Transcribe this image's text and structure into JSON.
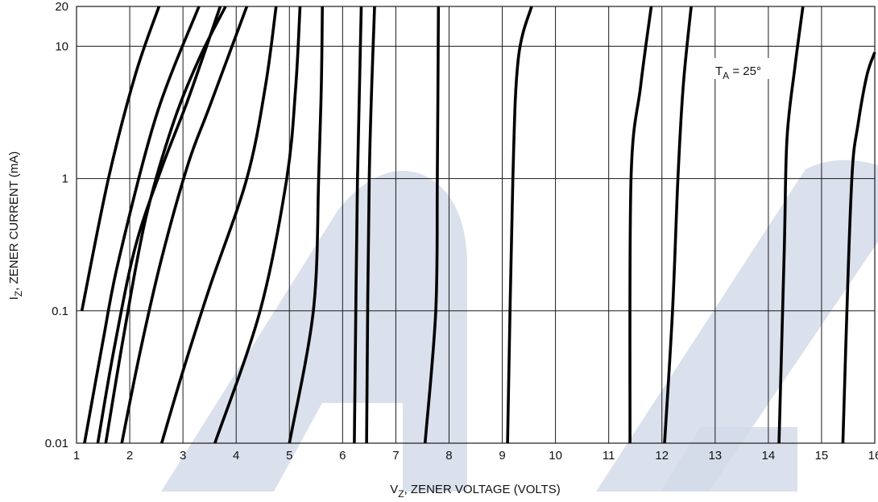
{
  "chart_data": {
    "type": "line",
    "xlabel": {
      "prefix": "V",
      "sub": "Z",
      "rest": ", ZENER VOLTAGE (VOLTS)"
    },
    "ylabel": {
      "prefix": "I",
      "sub": "Z",
      "rest": ", ZENER CURRENT (mA)"
    },
    "annotation": {
      "prefix": "T",
      "sub": "A",
      "rest": " = 25°"
    },
    "xlim": [
      1,
      16
    ],
    "ylim": [
      0.01,
      20
    ],
    "yscale": "log",
    "grid": true,
    "x_ticks": [
      "1",
      "2",
      "3",
      "4",
      "5",
      "6",
      "7",
      "8",
      "9",
      "10",
      "11",
      "12",
      "13",
      "14",
      "15",
      "16"
    ],
    "y_ticks": [
      {
        "value": 0.01,
        "label": "0.01"
      },
      {
        "value": 0.1,
        "label": "0.1"
      },
      {
        "value": 1,
        "label": "1"
      },
      {
        "value": 10,
        "label": "10"
      },
      {
        "value": 20,
        "label": "20"
      }
    ],
    "series": [
      {
        "points": [
          [
            1.1,
            0.1
          ],
          [
            1.6,
            1
          ],
          [
            2.1,
            6
          ],
          [
            2.55,
            20
          ]
        ]
      },
      {
        "points": [
          [
            1.15,
            0.01
          ],
          [
            1.5,
            0.06
          ],
          [
            1.8,
            0.25
          ],
          [
            2.5,
            3
          ],
          [
            3.3,
            20
          ]
        ]
      },
      {
        "points": [
          [
            1.4,
            0.01
          ],
          [
            1.7,
            0.05
          ],
          [
            2.1,
            0.3
          ],
          [
            2.6,
            1.2
          ],
          [
            3.1,
            4
          ],
          [
            3.7,
            20
          ]
        ]
      },
      {
        "points": [
          [
            1.55,
            0.01
          ],
          [
            1.9,
            0.07
          ],
          [
            2.3,
            0.5
          ],
          [
            2.8,
            2.5
          ],
          [
            3.3,
            8
          ],
          [
            3.8,
            20
          ]
        ]
      },
      {
        "points": [
          [
            1.85,
            0.01
          ],
          [
            2.2,
            0.05
          ],
          [
            2.6,
            0.25
          ],
          [
            3.1,
            1.3
          ],
          [
            3.5,
            3.5
          ],
          [
            4.2,
            20
          ]
        ]
      },
      {
        "points": [
          [
            2.6,
            0.01
          ],
          [
            3.0,
            0.035
          ],
          [
            3.5,
            0.15
          ],
          [
            4.2,
            1
          ],
          [
            4.55,
            5
          ],
          [
            4.75,
            20
          ]
        ]
      },
      {
        "points": [
          [
            3.6,
            0.01
          ],
          [
            4.45,
            0.1
          ],
          [
            4.95,
            1
          ],
          [
            5.12,
            5
          ],
          [
            5.2,
            20
          ]
        ]
      },
      {
        "points": [
          [
            5.0,
            0.01
          ],
          [
            5.45,
            0.1
          ],
          [
            5.55,
            1
          ],
          [
            5.6,
            5
          ],
          [
            5.62,
            20
          ]
        ]
      },
      {
        "points": [
          [
            6.22,
            0.01
          ],
          [
            6.28,
            1
          ],
          [
            6.35,
            20
          ]
        ]
      },
      {
        "points": [
          [
            6.45,
            0.01
          ],
          [
            6.5,
            1
          ],
          [
            6.6,
            20
          ]
        ]
      },
      {
        "points": [
          [
            7.55,
            0.01
          ],
          [
            7.75,
            0.1
          ],
          [
            7.78,
            1
          ],
          [
            7.8,
            20
          ]
        ]
      },
      {
        "points": [
          [
            9.1,
            0.01
          ],
          [
            9.2,
            1
          ],
          [
            9.3,
            8
          ],
          [
            9.55,
            20
          ]
        ]
      },
      {
        "points": [
          [
            11.4,
            0.01
          ],
          [
            11.42,
            1
          ],
          [
            11.6,
            5
          ],
          [
            11.8,
            20
          ]
        ]
      },
      {
        "points": [
          [
            12.05,
            0.01
          ],
          [
            12.2,
            0.1
          ],
          [
            12.3,
            1
          ],
          [
            12.4,
            5
          ],
          [
            12.55,
            20
          ]
        ]
      },
      {
        "points": [
          [
            14.2,
            0.01
          ],
          [
            14.3,
            0.3
          ],
          [
            14.35,
            2
          ],
          [
            14.5,
            7
          ],
          [
            14.65,
            20
          ]
        ]
      },
      {
        "points": [
          [
            15.4,
            0.01
          ],
          [
            15.5,
            0.2
          ],
          [
            15.58,
            1.2
          ],
          [
            15.68,
            2.5
          ],
          [
            15.85,
            6
          ],
          [
            16.0,
            9
          ]
        ]
      }
    ]
  }
}
